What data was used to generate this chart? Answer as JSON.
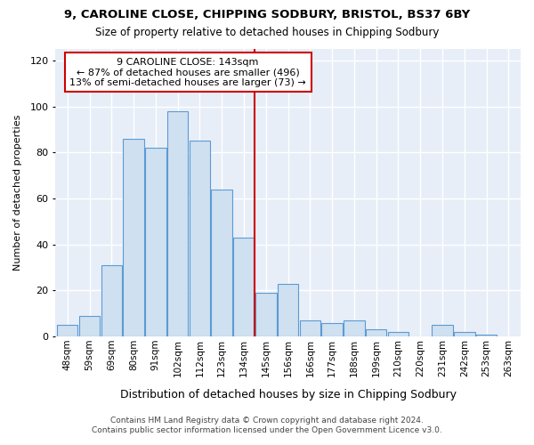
{
  "title1": "9, CAROLINE CLOSE, CHIPPING SODBURY, BRISTOL, BS37 6BY",
  "title2": "Size of property relative to detached houses in Chipping Sodbury",
  "xlabel": "Distribution of detached houses by size in Chipping Sodbury",
  "ylabel": "Number of detached properties",
  "categories": [
    "48sqm",
    "59sqm",
    "69sqm",
    "80sqm",
    "91sqm",
    "102sqm",
    "112sqm",
    "123sqm",
    "134sqm",
    "145sqm",
    "156sqm",
    "166sqm",
    "177sqm",
    "188sqm",
    "199sqm",
    "210sqm",
    "220sqm",
    "231sqm",
    "242sqm",
    "253sqm",
    "263sqm"
  ],
  "values": [
    5,
    9,
    31,
    86,
    82,
    98,
    85,
    64,
    43,
    19,
    23,
    7,
    6,
    7,
    3,
    2,
    0,
    5,
    2,
    1,
    0
  ],
  "bar_color": "#cfe0f0",
  "bar_edge_color": "#5b9bd5",
  "vline_x": 9,
  "vline_color": "#cc0000",
  "annotation_line1": "9 CAROLINE CLOSE: 143sqm",
  "annotation_line2": "← 87% of detached houses are smaller (496)",
  "annotation_line3": "13% of semi-detached houses are larger (73) →",
  "annotation_box_color": "#cc0000",
  "fig_background": "#ffffff",
  "plot_background": "#e8eef8",
  "grid_color": "#ffffff",
  "ylim": [
    0,
    125
  ],
  "yticks": [
    0,
    20,
    40,
    60,
    80,
    100,
    120
  ],
  "footer1": "Contains HM Land Registry data © Crown copyright and database right 2024.",
  "footer2": "Contains public sector information licensed under the Open Government Licence v3.0."
}
